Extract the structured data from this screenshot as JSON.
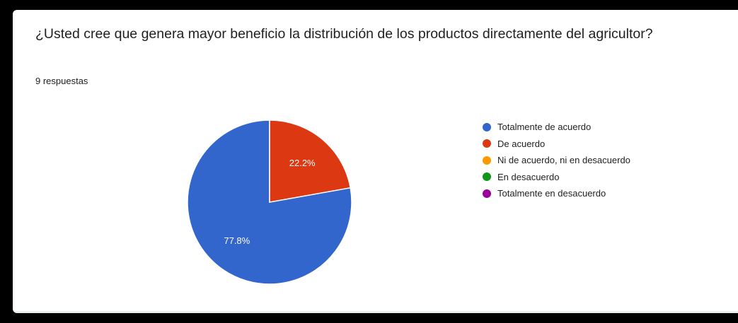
{
  "question": {
    "title": "¿Usted cree que genera mayor beneficio la distribución de los productos directamente del agricultor?",
    "responses": "9 respuestas"
  },
  "chart_data": {
    "type": "pie",
    "title": "¿Usted cree que genera mayor beneficio la distribución de los productos directamente del agricultor?",
    "total_responses": 9,
    "legend_position": "right",
    "categories": [
      "Totalmente de acuerdo",
      "De acuerdo",
      "Ni de acuerdo, ni en desacuerdo",
      "En desacuerdo",
      "Totalmente en desacuerdo"
    ],
    "values": [
      77.8,
      22.2,
      0,
      0,
      0
    ],
    "labels": [
      "77.8%",
      "22.2%",
      "",
      "",
      ""
    ],
    "colors": [
      "#3366cc",
      "#dc3912",
      "#ff9900",
      "#109618",
      "#990099"
    ]
  }
}
